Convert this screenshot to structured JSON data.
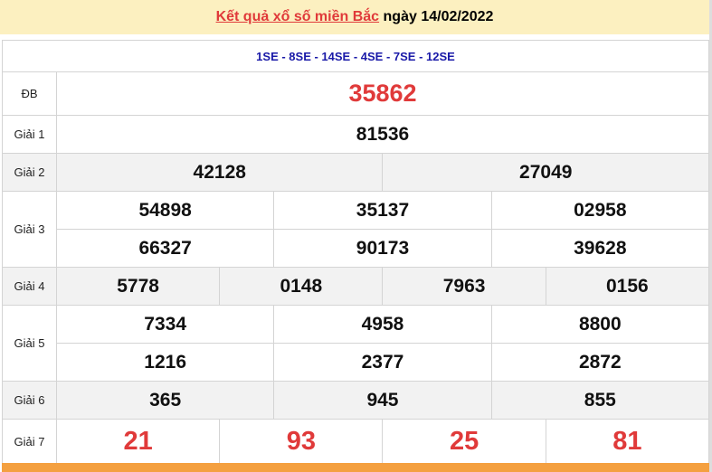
{
  "header": {
    "title_link": "Kết quả xổ số miền Bắc",
    "date_text": "ngày 14/02/2022"
  },
  "codes": "1SE - 8SE - 14SE - 4SE - 7SE - 12SE",
  "prizes": {
    "db": {
      "label": "ĐB",
      "values": [
        "35862"
      ]
    },
    "g1": {
      "label": "Giải 1",
      "values": [
        "81536"
      ]
    },
    "g2": {
      "label": "Giải 2",
      "values": [
        "42128",
        "27049"
      ]
    },
    "g3": {
      "label": "Giải 3",
      "values": [
        "54898",
        "35137",
        "02958",
        "66327",
        "90173",
        "39628"
      ]
    },
    "g4": {
      "label": "Giải 4",
      "values": [
        "5778",
        "0148",
        "7963",
        "0156"
      ]
    },
    "g5": {
      "label": "Giải 5",
      "values": [
        "7334",
        "4958",
        "8800",
        "1216",
        "2377",
        "2872"
      ]
    },
    "g6": {
      "label": "Giải 6",
      "values": [
        "365",
        "945",
        "855"
      ]
    },
    "g7": {
      "label": "Giải 7",
      "values": [
        "21",
        "93",
        "25",
        "81"
      ]
    }
  },
  "colors": {
    "accent_red": "#e03a3a",
    "code_blue": "#1a1aa8",
    "header_bg": "#fcf0c0",
    "footer_orange": "#f4a040"
  }
}
